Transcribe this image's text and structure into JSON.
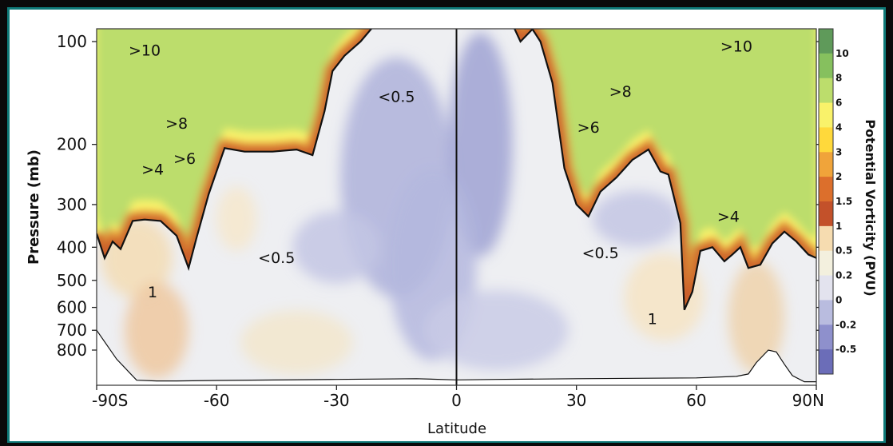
{
  "chart_data": {
    "type": "heatmap",
    "xlabel": "Latitude",
    "ylabel": "Pressure (mb)",
    "colorbar_label": "Potential Vorticity (PVU)",
    "x_ticks": [
      "-90S",
      "-60",
      "-30",
      "0",
      "30",
      "60",
      "90N"
    ],
    "x_tick_values": [
      -90,
      -60,
      -30,
      0,
      30,
      60,
      90
    ],
    "y_ticks": [
      "100",
      "200",
      "300",
      "400",
      "500",
      "600",
      "700",
      "800"
    ],
    "y_tick_values": [
      100,
      200,
      300,
      400,
      500,
      600,
      700,
      800
    ],
    "xlim": [
      -90,
      90
    ],
    "ylim": [
      100,
      1000
    ],
    "y_scale": "log",
    "colorbar": {
      "labels": [
        "10",
        "8",
        "6",
        "4",
        "3",
        "2",
        "1.5",
        "1",
        "0.5",
        "0.2",
        "0",
        "-0.2",
        "-0.5"
      ],
      "colors": [
        "#5f9a5a",
        "#86c05e",
        "#bcdd6c",
        "#f9f26a",
        "#ffd93b",
        "#f0a43a",
        "#dc6f2c",
        "#c3512a",
        "#f6dcb0",
        "#f3f0de",
        "#e3e3ee",
        "#b9bcdf",
        "#8e90cc",
        "#6b6db8"
      ]
    },
    "annotations": [
      {
        "text": ">10",
        "x": -78,
        "y": 110
      },
      {
        "text": ">8",
        "x": -70,
        "y": 180
      },
      {
        "text": ">6",
        "x": -68,
        "y": 228
      },
      {
        "text": ">4",
        "x": -76,
        "y": 245
      },
      {
        "text": "<0.5",
        "x": -15,
        "y": 150
      },
      {
        "text": "<0.5",
        "x": -45,
        "y": 445
      },
      {
        "text": "1",
        "x": -76,
        "y": 560
      },
      {
        "text": ">10",
        "x": 70,
        "y": 107
      },
      {
        "text": ">8",
        "x": 41,
        "y": 145
      },
      {
        "text": ">6",
        "x": 33,
        "y": 185
      },
      {
        "text": ">4",
        "x": 68,
        "y": 337
      },
      {
        "text": "<0.5",
        "x": 36,
        "y": 430
      },
      {
        "text": "1",
        "x": 49,
        "y": 672
      }
    ],
    "tropopause_2pvu": {
      "x": [
        -90,
        -88,
        -86,
        -84,
        -81,
        -78,
        -74,
        -70,
        -67,
        -65,
        -62,
        -58,
        -53,
        -46,
        -40,
        -36,
        -33,
        -31,
        -28,
        -24,
        -20,
        -16,
        -13,
        -9,
        -6,
        -3,
        -1,
        3,
        6,
        9,
        13,
        16,
        19,
        21,
        24,
        27,
        30,
        33,
        36,
        40,
        44,
        48,
        51,
        53,
        56,
        57,
        59,
        61,
        64,
        67,
        69,
        71,
        73,
        76,
        79,
        82,
        85,
        88,
        90
      ],
      "p": [
        365,
        430,
        385,
        405,
        335,
        332,
        335,
        370,
        460,
        375,
        280,
        205,
        210,
        210,
        207,
        215,
        160,
        122,
        110,
        100,
        88,
        87,
        90,
        87,
        86,
        85,
        75,
        75,
        86,
        88,
        84,
        100,
        92,
        100,
        132,
        235,
        300,
        325,
        275,
        250,
        222,
        207,
        240,
        245,
        340,
        610,
        540,
        410,
        400,
        440,
        420,
        400,
        460,
        450,
        390,
        360,
        385,
        420,
        430
      ]
    },
    "ground": {
      "x": [
        -90,
        -85,
        -80,
        -75,
        -70,
        -60,
        -30,
        -10,
        0,
        10,
        30,
        60,
        70,
        73,
        75,
        78,
        80,
        82,
        84,
        87,
        90
      ],
      "p": [
        700,
        850,
        980,
        985,
        985,
        982,
        975,
        970,
        978,
        975,
        970,
        965,
        955,
        940,
        870,
        800,
        810,
        880,
        950,
        990,
        990
      ]
    }
  }
}
